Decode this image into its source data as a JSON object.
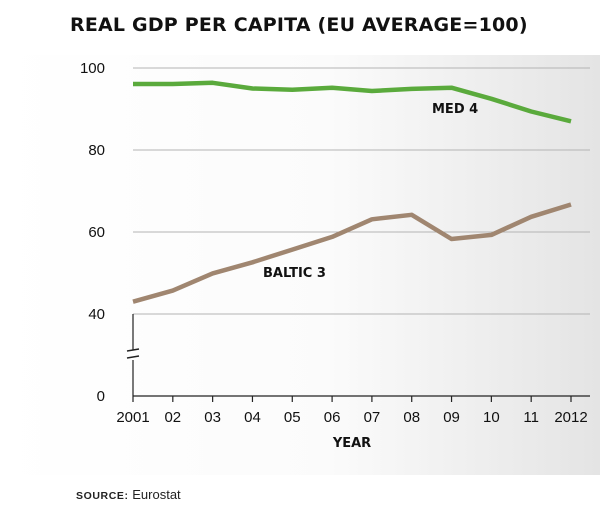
{
  "chart_data": {
    "type": "line",
    "title": "REAL GDP PER CAPITA (EU AVERAGE=100)",
    "xlabel": "YEAR",
    "ylabel": "",
    "categories": [
      "2001",
      "02",
      "03",
      "04",
      "05",
      "06",
      "07",
      "08",
      "09",
      "10",
      "11",
      "2012"
    ],
    "ylim": [
      0,
      100
    ],
    "yticks": [
      0,
      40,
      60,
      80,
      100
    ],
    "axis_break": "between 0 and 40",
    "grid": true,
    "series": [
      {
        "name": "MED 4",
        "color": "#5aaa3c",
        "values": [
          96.1,
          96.1,
          96.4,
          95.0,
          94.7,
          95.2,
          94.4,
          94.9,
          95.2,
          92.5,
          89.4,
          87.0
        ]
      },
      {
        "name": "BALTIC 3",
        "color": "#a08670",
        "values": [
          43.0,
          45.7,
          49.9,
          52.6,
          55.7,
          58.8,
          63.1,
          64.2,
          58.3,
          59.3,
          63.7,
          66.7
        ]
      }
    ]
  },
  "source": {
    "label": "SOURCE:",
    "text": "Eurostat"
  }
}
